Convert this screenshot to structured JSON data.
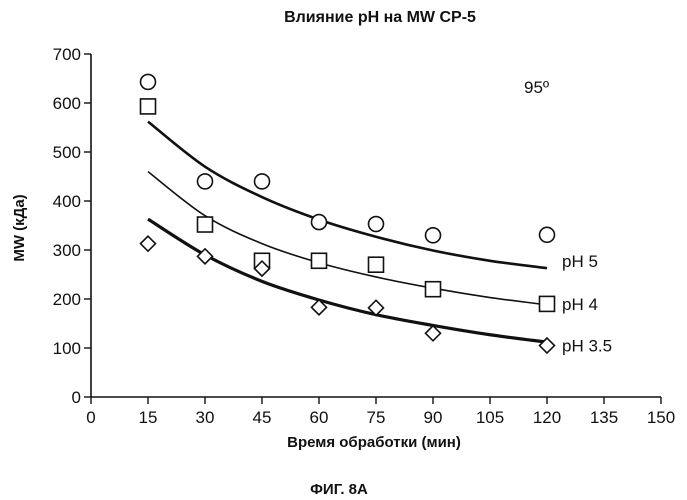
{
  "chart_data": {
    "type": "scatter",
    "title": "Влияние pH на MW CP-5",
    "xlabel": "Время обработки (мин)",
    "ylabel": "MW (кДа)",
    "xlim": [
      0,
      150
    ],
    "ylim": [
      0,
      700
    ],
    "xticks": [
      0,
      15,
      30,
      45,
      60,
      75,
      90,
      105,
      120,
      135,
      150
    ],
    "yticks": [
      0,
      100,
      200,
      300,
      400,
      500,
      600,
      700
    ],
    "grid": false,
    "annotation": "95º",
    "caption": "ФИГ. 8А",
    "series": [
      {
        "name": "pH 5",
        "marker": "circle",
        "x": [
          15,
          30,
          45,
          60,
          75,
          90,
          120
        ],
        "y": [
          643,
          440,
          440,
          357,
          353,
          330,
          331
        ],
        "fit_x": [
          15,
          30,
          45,
          60,
          75,
          90,
          105,
          120
        ],
        "fit_y": [
          562,
          470,
          408,
          362,
          327,
          299,
          278,
          263
        ]
      },
      {
        "name": "pH 4",
        "marker": "square",
        "x": [
          15,
          30,
          45,
          60,
          75,
          90,
          120
        ],
        "y": [
          593,
          352,
          278,
          278,
          270,
          220,
          190
        ],
        "fit_x": [
          15,
          30,
          45,
          60,
          75,
          90,
          105,
          120
        ],
        "fit_y": [
          460,
          370,
          313,
          274,
          245,
          222,
          203,
          188
        ]
      },
      {
        "name": "pH 3.5",
        "marker": "diamond",
        "x": [
          15,
          30,
          45,
          60,
          75,
          90,
          120
        ],
        "y": [
          313,
          287,
          262,
          183,
          182,
          130,
          105
        ],
        "fit_x": [
          15,
          30,
          45,
          60,
          75,
          90,
          105,
          120
        ],
        "fit_y": [
          363,
          290,
          236,
          198,
          168,
          146,
          127,
          112
        ]
      }
    ]
  }
}
